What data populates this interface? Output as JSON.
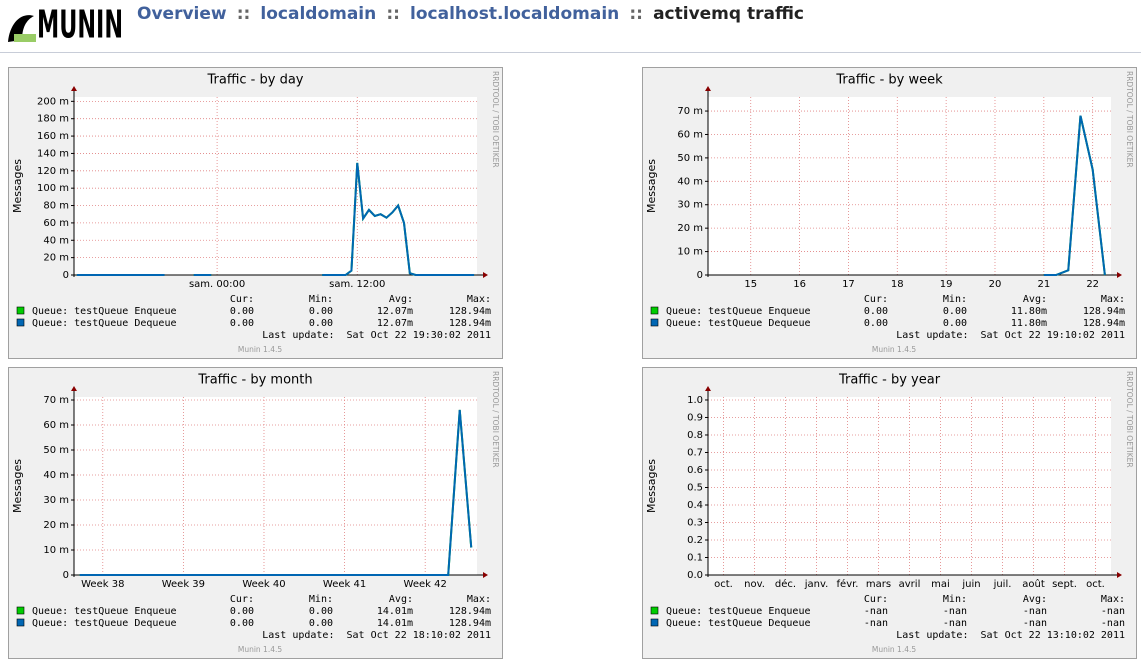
{
  "header": {
    "logo": "MUNIN",
    "crumbs": [
      "Overview",
      "localdomain",
      "localhost.localdomain"
    ],
    "separator": "::",
    "page": "activemq traffic"
  },
  "chart_data": [
    {
      "type": "line",
      "title": "Traffic - by day",
      "ylabel": "Messages",
      "side_text": "RRDTOOL / TOBI OETIKER",
      "grid": true,
      "categories": [
        null,
        null,
        null,
        null,
        null,
        null,
        null,
        null,
        null,
        null,
        null,
        null,
        null,
        null,
        null,
        null,
        null,
        null,
        null,
        null,
        null,
        null,
        null,
        null,
        "sam. 00:00",
        null,
        null,
        null,
        null,
        null,
        null,
        null,
        null,
        null,
        null,
        null,
        null,
        null,
        null,
        null,
        null,
        null,
        null,
        null,
        null,
        null,
        null,
        null,
        "sam. 12:00",
        null,
        null,
        null,
        null,
        null,
        null,
        null,
        null,
        null,
        null,
        null,
        null,
        null,
        null,
        null,
        null,
        null,
        null,
        null,
        null
      ],
      "ylim": [
        0,
        0.205
      ],
      "yticks": [
        0,
        {
          "value": 0.02,
          "label": "20 m"
        },
        {
          "value": 0.04,
          "label": "40 m"
        },
        {
          "value": 0.06,
          "label": "60 m"
        },
        {
          "value": 0.08,
          "label": "80 m"
        },
        {
          "value": 0.1,
          "label": "100 m"
        },
        {
          "value": 0.12,
          "label": "120 m"
        },
        {
          "value": 0.14,
          "label": "140 m"
        },
        {
          "value": 0.16,
          "label": "160 m"
        },
        {
          "value": 0.18,
          "label": "180 m"
        },
        {
          "value": 0.2,
          "label": "200 m"
        }
      ],
      "stat_headers": [
        "Cur:",
        "Min:",
        "Avg:",
        "Max:"
      ],
      "series": [
        {
          "name": "Queue: testQueue Enqueue",
          "color": "#00cc00",
          "stats": [
            "0.00",
            "0.00",
            "12.07m",
            "128.94m"
          ],
          "values": [
            0,
            0,
            0,
            0,
            0,
            0,
            0,
            0,
            0,
            0,
            0,
            0,
            0,
            0,
            0,
            0,
            null,
            null,
            null,
            null,
            0,
            0,
            0,
            0,
            null,
            null,
            null,
            null,
            null,
            null,
            null,
            null,
            null,
            null,
            null,
            null,
            0,
            null,
            null,
            null,
            null,
            null,
            0,
            0,
            0,
            0,
            0,
            0.005,
            0.129,
            0.065,
            0.075,
            0.068,
            0.07,
            0.066,
            0.072,
            0.08,
            0.06,
            0.002,
            0,
            0,
            0,
            0,
            0,
            0,
            0,
            0,
            0,
            0,
            0
          ]
        },
        {
          "name": "Queue: testQueue Dequeue",
          "color": "#0066b3",
          "stats": [
            "0.00",
            "0.00",
            "12.07m",
            "128.94m"
          ],
          "values": [
            0,
            0,
            0,
            0,
            0,
            0,
            0,
            0,
            0,
            0,
            0,
            0,
            0,
            0,
            0,
            0,
            null,
            null,
            null,
            null,
            0,
            0,
            0,
            0,
            null,
            null,
            null,
            null,
            null,
            null,
            null,
            null,
            null,
            null,
            null,
            null,
            0,
            null,
            null,
            null,
            null,
            null,
            0,
            0,
            0,
            0,
            0,
            0.005,
            0.129,
            0.065,
            0.075,
            0.068,
            0.07,
            0.066,
            0.072,
            0.08,
            0.06,
            0.002,
            0,
            0,
            0,
            0,
            0,
            0,
            0,
            0,
            0,
            0,
            0
          ]
        }
      ],
      "last_update": "Last update:  Sat Oct 22 19:30:02 2011",
      "version": "Munin 1.4.5"
    },
    {
      "type": "line",
      "title": "Traffic - by week",
      "ylabel": "Messages",
      "side_text": "RRDTOOL / TOBI OETIKER",
      "grid": true,
      "categories": [
        null,
        null,
        null,
        "15",
        null,
        null,
        null,
        "16",
        null,
        null,
        null,
        "17",
        null,
        null,
        null,
        "18",
        null,
        null,
        null,
        "19",
        null,
        null,
        null,
        "20",
        null,
        null,
        null,
        "21",
        null,
        null,
        null,
        "22",
        null
      ],
      "ylim": [
        0,
        0.076
      ],
      "yticks": [
        0,
        {
          "value": 0.01,
          "label": "10 m"
        },
        {
          "value": 0.02,
          "label": "20 m"
        },
        {
          "value": 0.03,
          "label": "30 m"
        },
        {
          "value": 0.04,
          "label": "40 m"
        },
        {
          "value": 0.05,
          "label": "50 m"
        },
        {
          "value": 0.06,
          "label": "60 m"
        },
        {
          "value": 0.07,
          "label": "70 m"
        }
      ],
      "stat_headers": [
        "Cur:",
        "Min:",
        "Avg:",
        "Max:"
      ],
      "series": [
        {
          "name": "Queue: testQueue Enqueue",
          "color": "#00cc00",
          "stats": [
            "0.00",
            "0.00",
            "11.80m",
            "128.94m"
          ],
          "values": [
            null,
            null,
            null,
            null,
            null,
            null,
            null,
            null,
            null,
            null,
            null,
            null,
            null,
            null,
            null,
            null,
            null,
            null,
            null,
            null,
            null,
            null,
            null,
            null,
            null,
            null,
            null,
            0,
            0,
            0.002,
            0.068,
            0.045,
            0
          ]
        },
        {
          "name": "Queue: testQueue Dequeue",
          "color": "#0066b3",
          "stats": [
            "0.00",
            "0.00",
            "11.80m",
            "128.94m"
          ],
          "values": [
            null,
            null,
            null,
            null,
            null,
            null,
            null,
            null,
            null,
            null,
            null,
            null,
            null,
            null,
            null,
            null,
            null,
            null,
            null,
            null,
            null,
            null,
            null,
            null,
            null,
            null,
            null,
            0,
            0,
            0.002,
            0.068,
            0.045,
            0
          ]
        }
      ],
      "last_update": "Last update:  Sat Oct 22 19:10:02 2011",
      "version": "Munin 1.4.5"
    },
    {
      "type": "line",
      "title": "Traffic - by month",
      "ylabel": "Messages",
      "side_text": "RRDTOOL / TOBI OETIKER",
      "grid": true,
      "categories": [
        null,
        null,
        "Week 38",
        null,
        null,
        null,
        null,
        null,
        null,
        "Week 39",
        null,
        null,
        null,
        null,
        null,
        null,
        "Week 40",
        null,
        null,
        null,
        null,
        null,
        null,
        "Week 41",
        null,
        null,
        null,
        null,
        null,
        null,
        "Week 42",
        null,
        null,
        null,
        null
      ],
      "ylim": [
        0,
        0.0712
      ],
      "yticks": [
        0,
        {
          "value": 0.01,
          "label": "10 m"
        },
        {
          "value": 0.02,
          "label": "20 m"
        },
        {
          "value": 0.03,
          "label": "30 m"
        },
        {
          "value": 0.04,
          "label": "40 m"
        },
        {
          "value": 0.05,
          "label": "50 m"
        },
        {
          "value": 0.06,
          "label": "60 m"
        },
        {
          "value": 0.07,
          "label": "70 m"
        }
      ],
      "stat_headers": [
        "Cur:",
        "Min:",
        "Avg:",
        "Max:"
      ],
      "series": [
        {
          "name": "Queue: testQueue Enqueue",
          "color": "#00cc00",
          "stats": [
            "0.00",
            "0.00",
            "14.01m",
            "128.94m"
          ],
          "values": [
            0,
            0,
            0,
            0,
            0,
            0,
            0,
            0,
            0,
            0,
            0,
            0,
            0,
            0,
            0,
            0,
            0,
            0,
            0,
            0,
            0,
            0,
            0,
            0,
            0,
            0,
            0,
            0,
            0,
            0,
            0,
            0,
            0,
            0.066,
            0.011
          ]
        },
        {
          "name": "Queue: testQueue Dequeue",
          "color": "#0066b3",
          "stats": [
            "0.00",
            "0.00",
            "14.01m",
            "128.94m"
          ],
          "values": [
            0,
            0,
            0,
            0,
            0,
            0,
            0,
            0,
            0,
            0,
            0,
            0,
            0,
            0,
            0,
            0,
            0,
            0,
            0,
            0,
            0,
            0,
            0,
            0,
            0,
            0,
            0,
            0,
            0,
            0,
            0,
            0,
            0,
            0.066,
            0.011
          ]
        }
      ],
      "last_update": "Last update:  Sat Oct 22 18:10:02 2011",
      "version": "Munin 1.4.5"
    },
    {
      "type": "line",
      "title": "Traffic - by year",
      "ylabel": "Messages",
      "side_text": "RRDTOOL / TOBI OETIKER",
      "grid": true,
      "categories": [
        "oct.",
        "nov.",
        "déc.",
        "janv.",
        "févr.",
        "mars",
        "avril",
        "mai",
        "juin",
        "juil.",
        "août",
        "sept.",
        "oct."
      ],
      "ylim": [
        0,
        1.017
      ],
      "yticks": [
        {
          "value": 0,
          "label": "0.0"
        },
        0.1,
        0.2,
        0.3,
        0.4,
        0.5,
        0.6,
        0.7,
        0.8,
        0.9,
        {
          "value": 1,
          "label": "1.0"
        }
      ],
      "stat_headers": [
        "Cur:",
        "Min:",
        "Avg:",
        "Max:"
      ],
      "series": [
        {
          "name": "Queue: testQueue Enqueue",
          "color": "#00cc00",
          "stats": [
            "-nan",
            "-nan",
            "-nan",
            "-nan"
          ],
          "values": [
            null,
            null,
            null,
            null,
            null,
            null,
            null,
            null,
            null,
            null,
            null,
            null,
            null
          ]
        },
        {
          "name": "Queue: testQueue Dequeue",
          "color": "#0066b3",
          "stats": [
            "-nan",
            "-nan",
            "-nan",
            "-nan"
          ],
          "values": [
            null,
            null,
            null,
            null,
            null,
            null,
            null,
            null,
            null,
            null,
            null,
            null,
            null
          ]
        }
      ],
      "last_update": "Last update:  Sat Oct 22 13:10:02 2011",
      "version": "Munin 1.4.5"
    }
  ]
}
